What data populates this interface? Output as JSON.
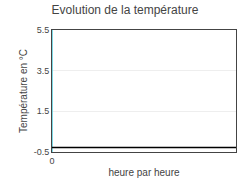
{
  "chart_data": {
    "type": "line",
    "title": "Evolution de la température",
    "x_label": "heure par heure",
    "y_label": "Température en °C",
    "xlim": [
      0,
      23
    ],
    "xticks": [
      0
    ],
    "ylim": [
      -0.5,
      5.5
    ],
    "yticks": [
      -0.5,
      1.5,
      3.5,
      5.5
    ],
    "grid": "y",
    "vlines": [
      {
        "x": 0,
        "color": "#55ccdd"
      }
    ],
    "hlines": [
      {
        "y": -0.28,
        "color": "#000000"
      }
    ]
  }
}
